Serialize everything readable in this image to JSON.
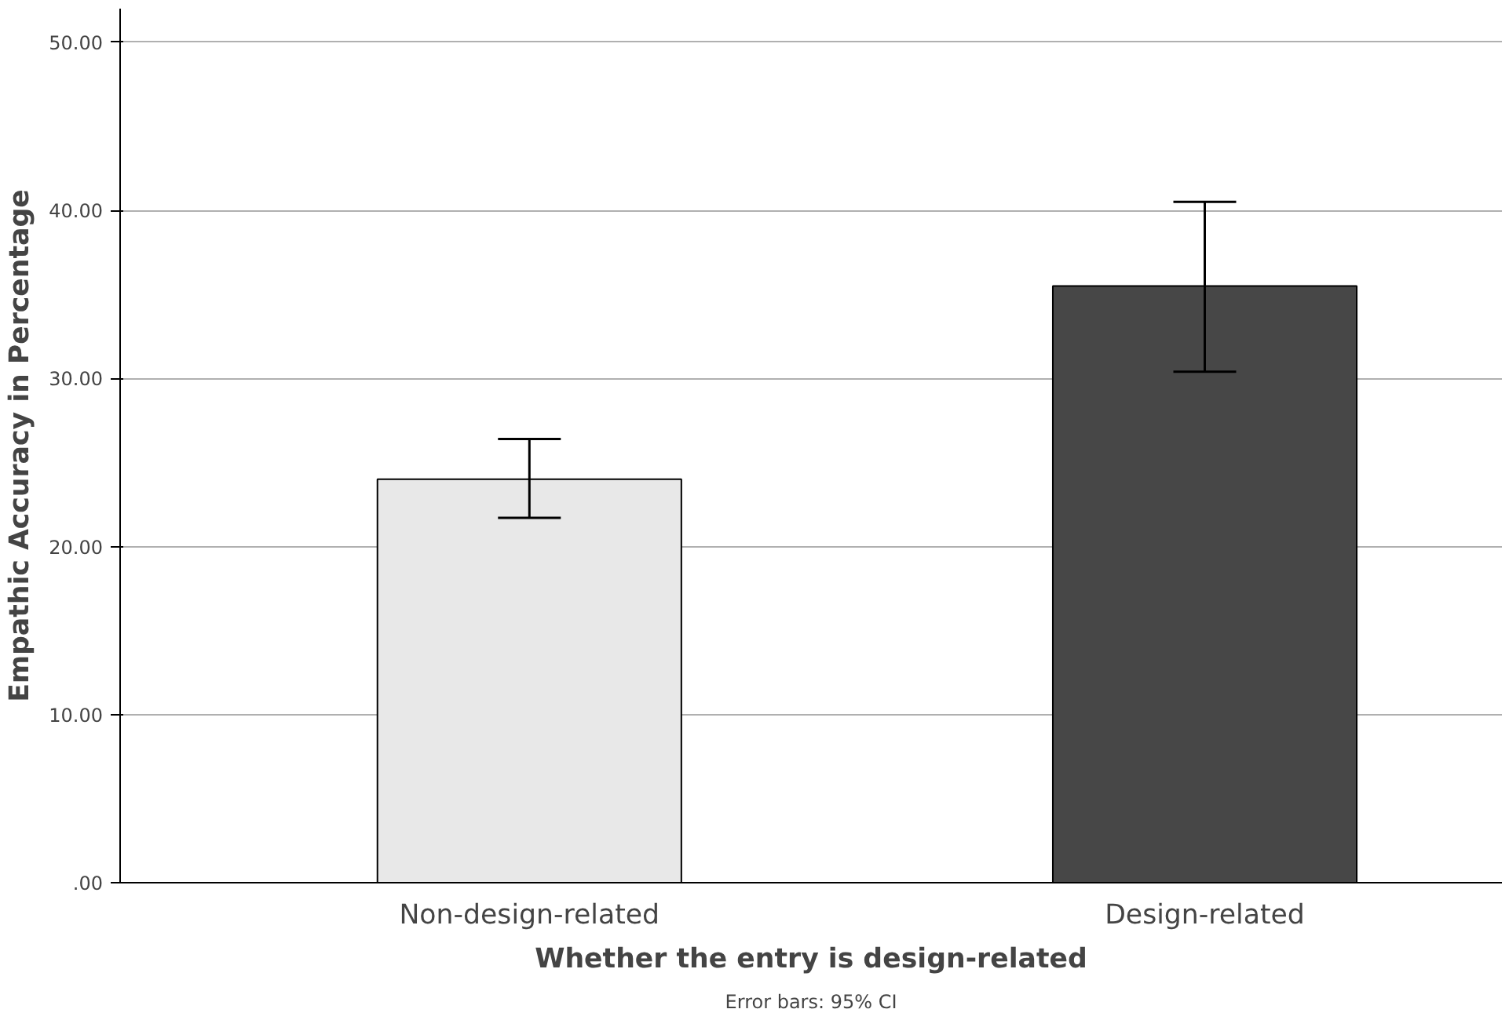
{
  "chart_data": {
    "type": "bar",
    "categories": [
      "Non-design-related",
      "Design-related"
    ],
    "values": [
      24.0,
      35.5
    ],
    "colors": [
      "#e8e8e8",
      "#474747"
    ],
    "errors": [
      [
        21.7,
        26.4
      ],
      [
        30.4,
        40.5
      ]
    ],
    "xlabel": "Whether the entry is design-related",
    "ylabel": "Empathic Accuracy in Percentage",
    "ylim": [
      0,
      52
    ],
    "yticks": [
      {
        "value": 0,
        "label": ".00"
      },
      {
        "value": 10,
        "label": "10.00"
      },
      {
        "value": 20,
        "label": "20.00"
      },
      {
        "value": 30,
        "label": "30.00"
      },
      {
        "value": 40,
        "label": "40.00"
      },
      {
        "value": 50,
        "label": "50.00"
      }
    ],
    "grid": "y",
    "annotations": [
      "Error bars: 95% CI"
    ]
  }
}
